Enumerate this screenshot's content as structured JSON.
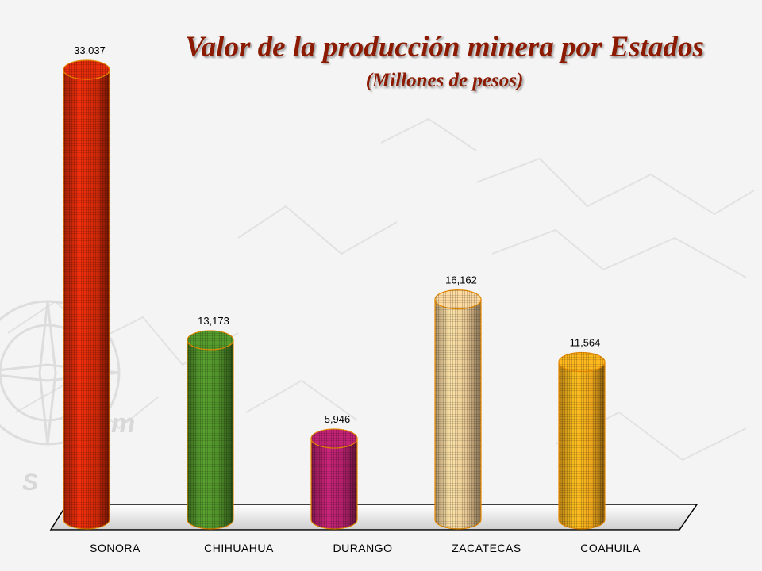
{
  "chart_data": {
    "type": "bar",
    "title": "Valor de la producción minera por Estados",
    "subtitle": "(Millones de pesos)",
    "categories": [
      "SONORA",
      "CHIHUAHUA",
      "DURANGO",
      "ZACATECAS",
      "COAHUILA"
    ],
    "values": [
      33037,
      13173,
      5946,
      16162,
      11564
    ],
    "value_labels": [
      "33,037",
      "13,173",
      "5,946",
      "16,162",
      "11,564"
    ],
    "colors": [
      "#d42a0a",
      "#4f8f2a",
      "#b0206a",
      "#e8c792",
      "#f0a81c"
    ],
    "ylim": [
      0,
      33037
    ],
    "grid": false,
    "legend": "none"
  }
}
